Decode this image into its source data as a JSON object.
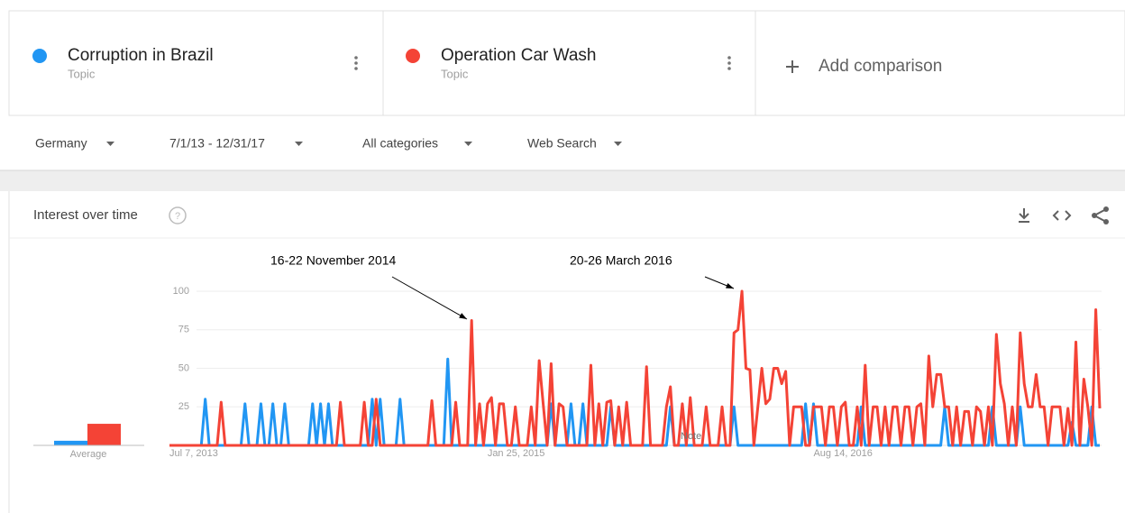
{
  "header": {
    "terms": [
      "Topic",
      "Topic"
    ],
    "add": "Add comparison"
  },
  "filters": [
    "Germany",
    "7/1/13 - 12/31/17",
    "All categories",
    "Web Search"
  ],
  "section_title": "Interest over time",
  "chart_data": {
    "type": "line",
    "categories": [
      "Jul 7, 2013",
      null,
      null,
      null,
      null,
      null,
      null,
      null,
      null,
      null,
      null,
      null,
      null,
      null,
      null,
      null,
      null,
      null,
      null,
      null,
      null,
      null,
      null,
      null,
      null,
      null,
      null,
      null,
      null,
      null,
      null,
      null,
      null,
      null,
      null,
      null,
      null,
      null,
      null,
      null,
      null,
      null,
      null,
      null,
      null,
      null,
      null,
      null,
      null,
      null,
      null,
      null,
      null,
      null,
      null,
      null,
      null,
      null,
      null,
      null,
      null,
      null,
      null,
      null,
      null,
      null,
      null,
      null,
      null,
      null,
      null,
      null,
      null,
      null,
      null,
      null,
      null,
      null,
      null,
      null,
      "Jan 25, 2015",
      null,
      null,
      null,
      null,
      null,
      null,
      null,
      null,
      null,
      null,
      null,
      null,
      null,
      null,
      null,
      null,
      null,
      null,
      null,
      null,
      null,
      null,
      null,
      null,
      null,
      null,
      null,
      null,
      null,
      null,
      null,
      null,
      null,
      null,
      null,
      null,
      null,
      null,
      null,
      null,
      null,
      null,
      null,
      null,
      null,
      null,
      null,
      null,
      null,
      null,
      null,
      null,
      null,
      null,
      null,
      null,
      null,
      null,
      null,
      null,
      null,
      null,
      null,
      null,
      null,
      null,
      null,
      null,
      null,
      null,
      null,
      null,
      null,
      null,
      null,
      null,
      null,
      null,
      null,
      null,
      null,
      "Aug 14, 2016",
      null,
      null,
      null,
      null,
      null,
      null,
      null,
      null,
      null,
      null,
      null,
      null,
      null,
      null,
      null,
      null,
      null,
      null,
      null,
      null,
      null,
      null,
      null,
      null,
      null,
      null,
      null,
      null,
      null,
      null,
      null,
      null,
      null,
      null,
      null,
      null,
      null,
      null,
      null,
      null,
      null,
      null,
      null,
      null,
      null,
      null,
      null,
      null,
      null,
      null,
      null,
      null,
      null,
      null,
      null,
      null,
      null,
      null,
      null,
      null,
      null,
      null,
      null,
      null,
      null,
      null,
      null,
      null,
      null,
      null,
      null,
      null
    ],
    "series": [
      {
        "name": "Corruption in Brazil",
        "color": "#2196f3",
        "values": [
          0,
          0,
          0,
          0,
          0,
          0,
          0,
          0,
          0,
          30,
          0,
          0,
          0,
          0,
          0,
          0,
          0,
          0,
          0,
          27,
          0,
          0,
          0,
          27,
          0,
          0,
          27,
          0,
          0,
          27,
          0,
          0,
          0,
          0,
          0,
          0,
          27,
          0,
          27,
          0,
          27,
          0,
          0,
          0,
          0,
          0,
          0,
          0,
          0,
          0,
          0,
          30,
          0,
          30,
          0,
          0,
          0,
          0,
          30,
          0,
          0,
          0,
          0,
          0,
          0,
          0,
          0,
          0,
          0,
          0,
          56,
          0,
          0,
          0,
          0,
          0,
          0,
          0,
          0,
          0,
          0,
          0,
          0,
          0,
          0,
          0,
          0,
          0,
          0,
          0,
          0,
          0,
          0,
          0,
          0,
          0,
          27,
          0,
          0,
          0,
          0,
          27,
          0,
          0,
          27,
          0,
          0,
          0,
          0,
          0,
          0,
          25,
          0,
          0,
          0,
          0,
          0,
          0,
          0,
          0,
          0,
          0,
          0,
          0,
          0,
          0,
          25,
          0,
          0,
          0,
          0,
          0,
          0,
          0,
          0,
          0,
          0,
          0,
          0,
          0,
          0,
          0,
          25,
          0,
          0,
          0,
          0,
          0,
          0,
          0,
          0,
          0,
          0,
          0,
          0,
          0,
          0,
          0,
          0,
          0,
          27,
          0,
          27,
          0,
          0,
          0,
          0,
          0,
          0,
          0,
          0,
          0,
          0,
          0,
          25,
          0,
          0,
          0,
          0,
          0,
          0,
          0,
          0,
          0,
          0,
          0,
          0,
          0,
          0,
          0,
          0,
          0,
          0,
          0,
          0,
          25,
          0,
          0,
          0,
          0,
          0,
          0,
          0,
          0,
          0,
          0,
          0,
          25,
          0,
          0,
          0,
          0,
          0,
          0,
          25,
          0,
          0,
          0,
          0,
          0,
          0,
          0,
          0,
          0,
          0,
          0,
          0,
          15,
          0,
          0,
          0,
          0,
          25,
          0,
          0
        ]
      },
      {
        "name": "Operation Car Wash",
        "color": "#f44336",
        "values": [
          0,
          0,
          0,
          0,
          0,
          0,
          0,
          0,
          0,
          0,
          0,
          0,
          0,
          28,
          0,
          0,
          0,
          0,
          0,
          0,
          0,
          0,
          0,
          0,
          0,
          0,
          0,
          0,
          0,
          0,
          0,
          0,
          0,
          0,
          0,
          0,
          0,
          0,
          0,
          0,
          0,
          0,
          0,
          28,
          0,
          0,
          0,
          0,
          0,
          28,
          0,
          0,
          30,
          0,
          0,
          0,
          0,
          0,
          0,
          0,
          0,
          0,
          0,
          0,
          0,
          0,
          29,
          0,
          0,
          0,
          0,
          0,
          28,
          0,
          0,
          0,
          81,
          0,
          27,
          0,
          27,
          31,
          0,
          27,
          27,
          0,
          0,
          25,
          0,
          0,
          0,
          25,
          0,
          55,
          27,
          0,
          53,
          0,
          27,
          25,
          0,
          0,
          0,
          0,
          0,
          0,
          52,
          0,
          27,
          0,
          28,
          29,
          0,
          25,
          0,
          28,
          0,
          0,
          0,
          0,
          51,
          0,
          0,
          0,
          0,
          25,
          38,
          0,
          0,
          27,
          0,
          31,
          0,
          0,
          0,
          25,
          0,
          0,
          0,
          25,
          0,
          0,
          73,
          75,
          100,
          50,
          49,
          0,
          25,
          50,
          27,
          30,
          50,
          50,
          40,
          48,
          0,
          25,
          25,
          25,
          0,
          0,
          25,
          25,
          25,
          0,
          25,
          25,
          0,
          25,
          28,
          0,
          0,
          25,
          0,
          52,
          0,
          25,
          25,
          0,
          25,
          0,
          25,
          25,
          0,
          25,
          25,
          0,
          25,
          27,
          0,
          58,
          25,
          46,
          46,
          25,
          25,
          0,
          25,
          0,
          22,
          22,
          0,
          25,
          22,
          0,
          25,
          0,
          72,
          40,
          27,
          0,
          25,
          0,
          73,
          40,
          25,
          25,
          46,
          25,
          25,
          0,
          25,
          25,
          25,
          0,
          24,
          0,
          67,
          0,
          43,
          25,
          0,
          88,
          24
        ]
      }
    ],
    "ylim": [
      0,
      100
    ],
    "yticks": [
      25,
      50,
      75,
      100
    ],
    "grid": true,
    "average": {
      "label": "Average",
      "values": [
        3,
        14
      ]
    },
    "annotations": [
      "16-22 November 2014",
      "20-26 March 2016"
    ],
    "note": "Note"
  }
}
